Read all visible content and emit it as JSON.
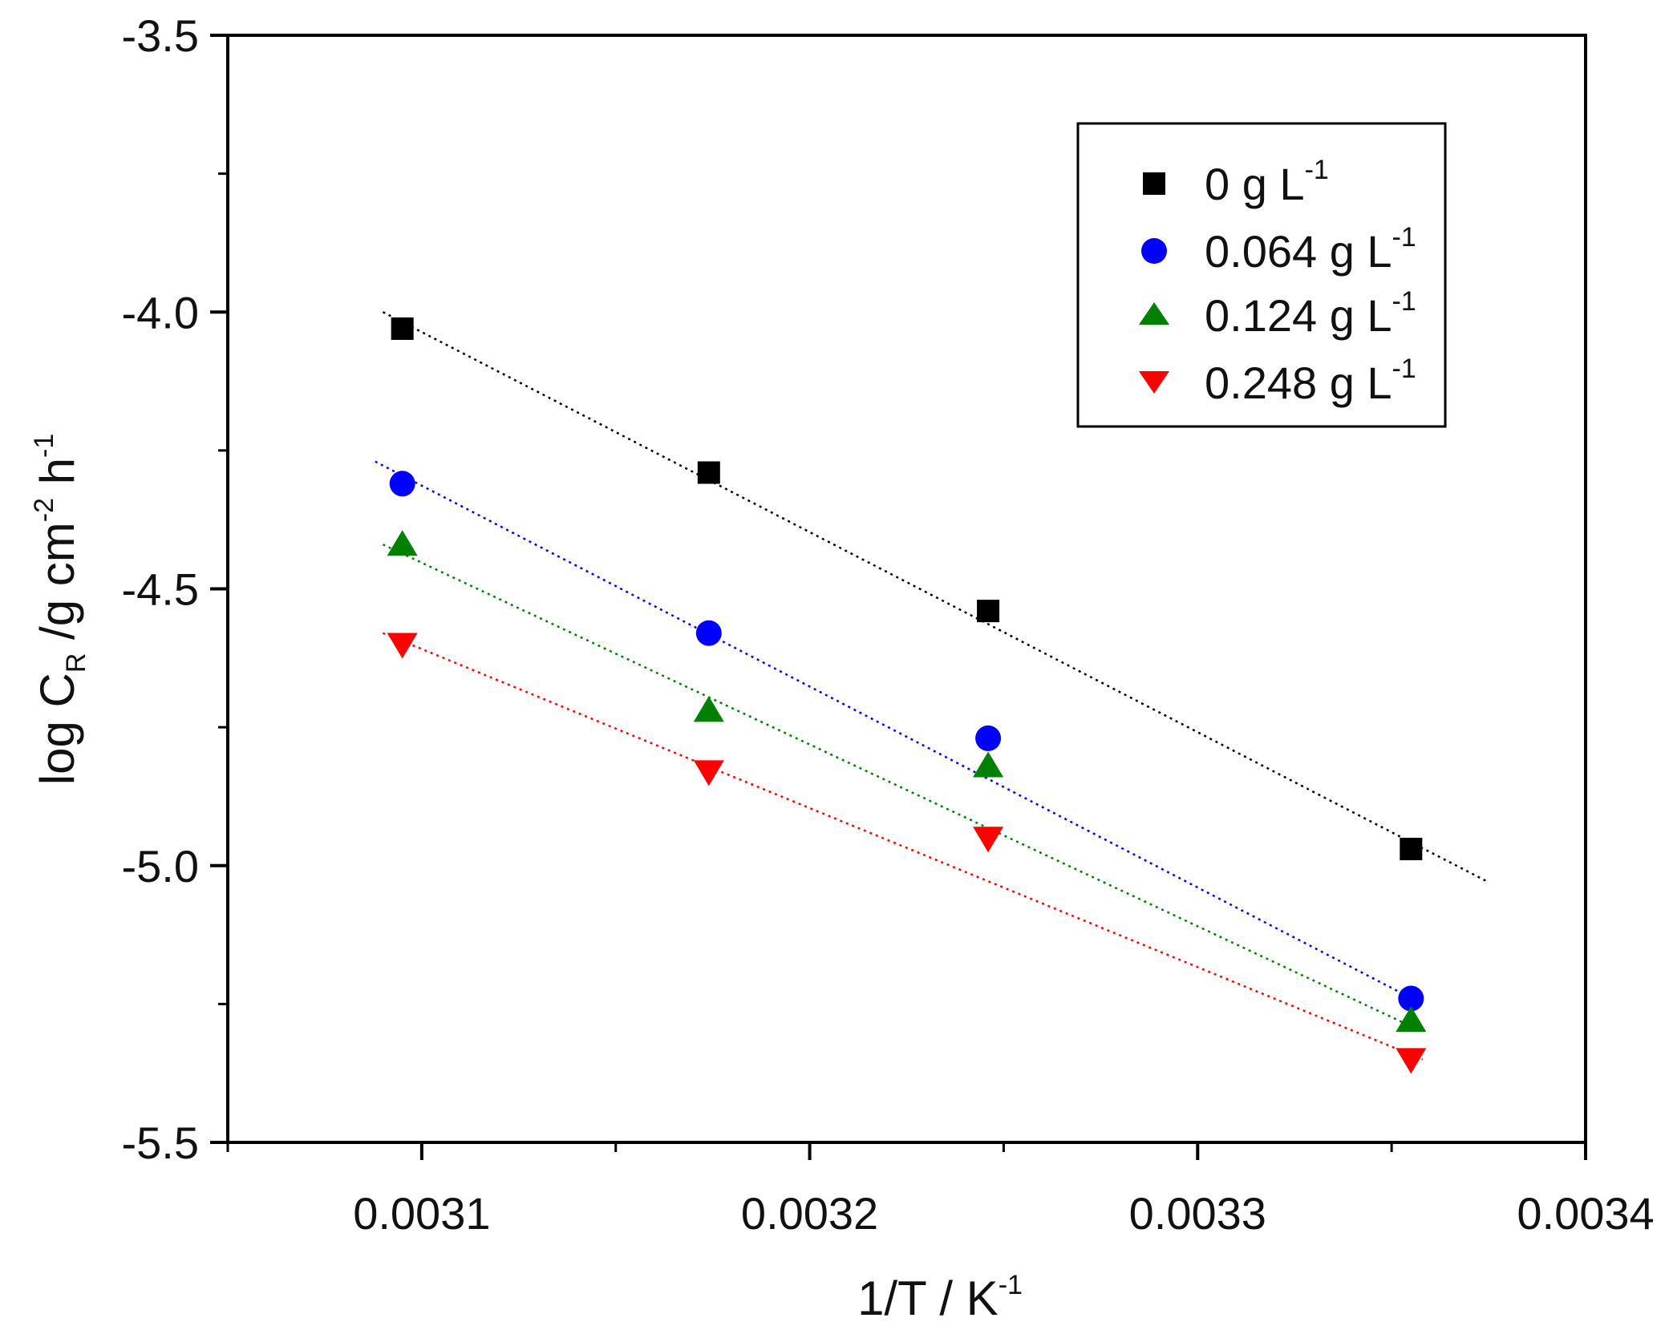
{
  "chart_data": {
    "type": "scatter",
    "title": "",
    "xlabel": {
      "main": "1/T / K",
      "sup": "-1"
    },
    "ylabel": {
      "main": "log C",
      "sub": "R",
      "unit_1": " /g cm",
      "sup_1": "-2",
      "unit_2": " h",
      "sup_2": "-1"
    },
    "xlim": [
      0.00305,
      0.0034
    ],
    "ylim": [
      -5.5,
      -3.5
    ],
    "x_ticks": [
      0.0031,
      0.0032,
      0.0033,
      0.0034
    ],
    "x_tick_labels": [
      "0.0031",
      "0.0032",
      "0.0033",
      "0.0034"
    ],
    "y_ticks": [
      -3.5,
      -4.0,
      -4.5,
      -5.0,
      -5.5
    ],
    "y_tick_labels": [
      "-3.5",
      "-4.0",
      "-4.5",
      "-5.0",
      "-5.5"
    ],
    "legend_position": "top-right",
    "fit_lines": "dotted linear fits, one per series",
    "series": [
      {
        "name": "0 g L",
        "name_sup": "-1",
        "color": "#000000",
        "marker": "square",
        "x": [
          0.003095,
          0.003174,
          0.003246,
          0.003355
        ],
        "y": [
          -4.03,
          -4.29,
          -4.54,
          -4.97
        ],
        "fit": {
          "x": [
            0.00309,
            0.003375
          ],
          "y": [
            -4.0,
            -5.03
          ]
        }
      },
      {
        "name": "0.064 g L",
        "name_sup": "-1",
        "color": "#0000ff",
        "marker": "circle",
        "x": [
          0.003095,
          0.003174,
          0.003246,
          0.003355
        ],
        "y": [
          -4.31,
          -4.58,
          -4.77,
          -5.24
        ],
        "fit": {
          "x": [
            0.003088,
            0.003358
          ],
          "y": [
            -4.27,
            -5.25
          ]
        }
      },
      {
        "name": "0.124 g L",
        "name_sup": "-1",
        "color": "#008000",
        "marker": "triangle-up",
        "x": [
          0.003095,
          0.003174,
          0.003246,
          0.003355
        ],
        "y": [
          -4.42,
          -4.72,
          -4.82,
          -5.28
        ],
        "fit": {
          "x": [
            0.00309,
            0.003358
          ],
          "y": [
            -4.42,
            -5.3
          ]
        }
      },
      {
        "name": "0.248 g L",
        "name_sup": "-1",
        "color": "#ff0000",
        "marker": "triangle-down",
        "x": [
          0.003095,
          0.003174,
          0.003246,
          0.003355
        ],
        "y": [
          -4.6,
          -4.83,
          -4.95,
          -5.35
        ],
        "fit": {
          "x": [
            0.00309,
            0.003358
          ],
          "y": [
            -4.58,
            -5.35
          ]
        }
      }
    ]
  }
}
